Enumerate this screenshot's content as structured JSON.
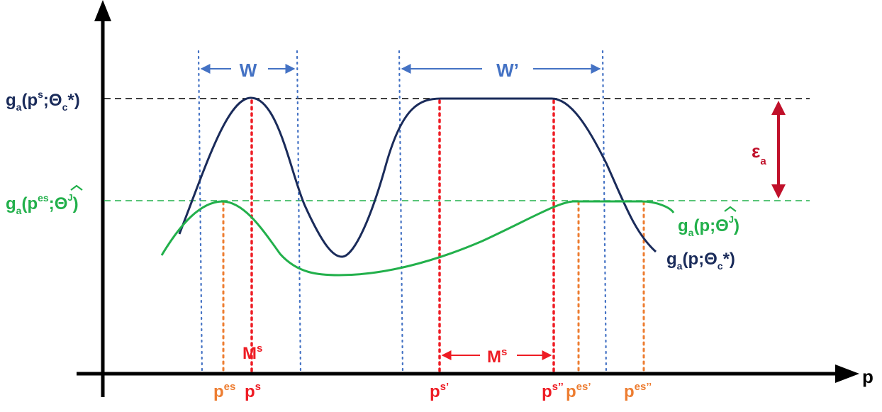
{
  "colors": {
    "navy": "#1a2b5a",
    "green": "#22b04b",
    "blue": "#4472c4",
    "red": "#ee1c24",
    "orange": "#ed7d31",
    "darkred": "#c0102a",
    "axis": "#000000"
  },
  "labels": {
    "x_axis": "p",
    "window_w": "W",
    "window_w_prime": "W’",
    "ms_left": "M",
    "ms_left_sup": "s",
    "ms_right": "M",
    "ms_right_sup": "s",
    "epsilon": "ε",
    "epsilon_sub": "a"
  },
  "y_labels": {
    "max": {
      "g": "g",
      "sub_a": "a",
      "open": "(p",
      "sup_s": "s",
      "semi": ";",
      "theta": "Θ",
      "sub_c": "c",
      "close": "*)"
    },
    "est": {
      "g": "g",
      "sub_a": "a",
      "open": "(p",
      "sup_es": "es",
      "semi": ";",
      "theta": "Θ",
      "sup_j": "J",
      "close": ")"
    }
  },
  "curve_labels": {
    "green": {
      "g": "g",
      "sub_a": "a",
      "open": "(p;",
      "theta": "Θ",
      "sup_j": "J",
      "close": ")"
    },
    "navy": {
      "g": "g",
      "sub_a": "a",
      "open": "(p;",
      "theta": "Θ",
      "sub_c": "c",
      "close": "*)"
    }
  },
  "x_ticks": [
    {
      "id": "pes",
      "base": "p",
      "sup": "es",
      "color": "orange"
    },
    {
      "id": "ps",
      "base": "p",
      "sup": "s",
      "color": "red"
    },
    {
      "id": "ps1",
      "base": "p",
      "sup": "s’",
      "color": "red"
    },
    {
      "id": "ps2",
      "base": "p",
      "sup": "s’’",
      "color": "red"
    },
    {
      "id": "pes1",
      "base": "p",
      "sup": "es’",
      "color": "orange"
    },
    {
      "id": "pes2",
      "base": "p",
      "sup": "es’’",
      "color": "orange"
    }
  ]
}
